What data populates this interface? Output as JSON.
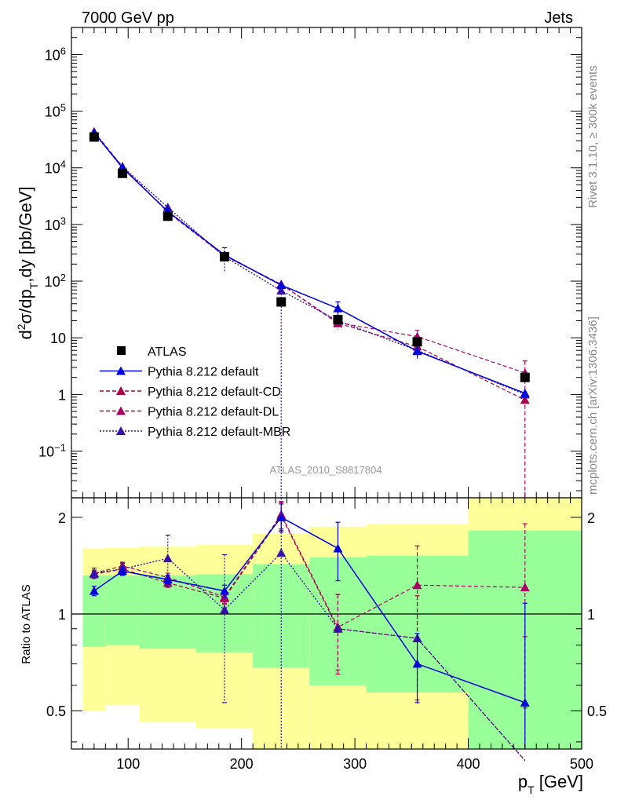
{
  "header": {
    "left_title": "7000 GeV pp",
    "right_title": "Jets"
  },
  "side_labels": {
    "rivet": "Rivet 3.1.10, ≥ 300k events",
    "mcplots": "mcplots.cern.ch [arXiv:1306.3436]"
  },
  "analysis_label": "ATLAS_2010_S8817804",
  "colors": {
    "atlas": "#000000",
    "default": "#0000dd",
    "cd": "#aa0044",
    "dl": "#aa0066",
    "mbr": "#3311aa",
    "band_yellow": "#ffff99",
    "band_green": "#99ff99"
  },
  "chart_data": [
    {
      "type": "scatter",
      "panel": "main",
      "title": "",
      "ylabel": "d²σ/dp_T,dy [pb/GeV]",
      "xlabel": "",
      "yscale": "log",
      "xlim": [
        50,
        500
      ],
      "ylim": [
        0.015,
        3000000
      ],
      "x_tick_labels": [
        "100",
        "200",
        "300",
        "400",
        "500"
      ],
      "y_tick_labels": [
        {
          "base": "10",
          "exp": "6",
          "value": 1000000
        },
        {
          "base": "10",
          "exp": "5",
          "value": 100000
        },
        {
          "base": "10",
          "exp": "4",
          "value": 10000
        },
        {
          "base": "10",
          "exp": "3",
          "value": 1000
        },
        {
          "base": "10",
          "exp": "2",
          "value": 100
        },
        {
          "base": "10",
          "exp": "",
          "value": 10
        },
        {
          "base": "1",
          "exp": "",
          "value": 1
        },
        {
          "base": "10",
          "exp": "−1",
          "value": 0.1
        }
      ],
      "x": [
        70,
        95,
        135,
        185,
        235,
        285,
        355,
        450
      ],
      "bin_edges": [
        60,
        80,
        110,
        160,
        210,
        260,
        310,
        400,
        500
      ],
      "legend": [
        {
          "label": "ATLAS",
          "key": "atlas",
          "style": "square"
        },
        {
          "label": "Pythia 8.212 default",
          "key": "default",
          "style": "solid"
        },
        {
          "label": "Pythia 8.212 default-CD",
          "key": "cd",
          "style": "dashed"
        },
        {
          "label": "Pythia 8.212 default-DL",
          "key": "dl",
          "style": "dashed"
        },
        {
          "label": "Pythia 8.212 default-MBR",
          "key": "mbr",
          "style": "dotted"
        }
      ],
      "series": [
        {
          "name": "ATLAS",
          "key": "atlas",
          "values": [
            35000,
            8000,
            1400,
            270,
            43,
            21,
            8.5,
            2.0
          ]
        },
        {
          "name": "Pythia 8.212 default",
          "key": "default",
          "values": [
            42000,
            10000,
            1700,
            290,
            85,
            33,
            5.8,
            1.05
          ],
          "err_hi": [
            0,
            0,
            0,
            0,
            0,
            10,
            1.5,
            0
          ],
          "err_lo": [
            0,
            0,
            0,
            0,
            0,
            8,
            1.5,
            0
          ]
        },
        {
          "name": "Pythia 8.212 default-CD",
          "key": "cd",
          "values": [
            43000,
            10500,
            1650,
            280,
            88,
            18,
            7.0,
            0.8
          ]
        },
        {
          "name": "Pythia 8.212 default-DL",
          "key": "dl",
          "values": [
            43000,
            10500,
            1650,
            280,
            88,
            18.5,
            10.5,
            2.4
          ],
          "err_hi": [
            0,
            0,
            0,
            0,
            0,
            0,
            3,
            1.5
          ],
          "err_lo": [
            0,
            0,
            0,
            0,
            0,
            4.5,
            3,
            2.4
          ]
        },
        {
          "name": "Pythia 8.212 default-MBR",
          "key": "mbr",
          "values": [
            40000,
            10500,
            2000,
            270,
            68,
            20,
            6.0,
            1.0
          ],
          "err_hi": [
            0,
            0,
            0,
            120,
            0,
            0,
            0,
            0
          ],
          "err_lo": [
            0,
            0,
            0,
            130,
            68,
            0,
            0,
            0
          ]
        }
      ]
    },
    {
      "type": "line",
      "panel": "ratio",
      "ylabel": "Ratio to ATLAS",
      "xlabel": "p_T [GeV]",
      "yscale": "log",
      "xlim": [
        50,
        500
      ],
      "ylim": [
        0.38,
        2.3
      ],
      "y_tick_labels": [
        "2",
        "1",
        "0.5"
      ],
      "y_tick_values": [
        2,
        1,
        0.5
      ],
      "x": [
        70,
        95,
        135,
        185,
        235,
        285,
        355,
        450
      ],
      "bands": {
        "edges": [
          60,
          80,
          110,
          160,
          210,
          260,
          310,
          400,
          500
        ],
        "green": [
          [
            0.79,
            1.32
          ],
          [
            0.8,
            1.32
          ],
          [
            0.78,
            1.32
          ],
          [
            0.76,
            1.33
          ],
          [
            0.68,
            1.43
          ],
          [
            0.6,
            1.5
          ],
          [
            0.57,
            1.52
          ],
          [
            0.38,
            1.82
          ]
        ],
        "yellow": [
          [
            0.5,
            1.6
          ],
          [
            0.52,
            1.61
          ],
          [
            0.46,
            1.62
          ],
          [
            0.44,
            1.64
          ],
          [
            0.3,
            1.78
          ],
          [
            0.3,
            1.87
          ],
          [
            0.3,
            1.9
          ],
          [
            0.3,
            2.5
          ]
        ]
      },
      "series": [
        {
          "name": "Pythia 8.212 default",
          "key": "default",
          "values": [
            1.18,
            1.36,
            1.28,
            1.18,
            2.0,
            1.6,
            0.7,
            0.53
          ],
          "err": [
            0.04,
            0.04,
            0.04,
            0.05,
            0.2,
            0.33,
            0.17,
            0.55
          ]
        },
        {
          "name": "Pythia 8.212 default-CD",
          "key": "cd",
          "values": [
            1.33,
            1.38,
            1.25,
            1.12,
            2.02,
            0.9,
            0.84,
            0.35
          ],
          "err": [
            0.03,
            0.04,
            0.04,
            0.05,
            0.2,
            0.25,
            0.3,
            0.5
          ]
        },
        {
          "name": "Pythia 8.212 default-DL",
          "key": "dl",
          "values": [
            1.34,
            1.41,
            1.3,
            1.13,
            2.04,
            0.91,
            1.23,
            1.21
          ],
          "err": [
            0.03,
            0.04,
            0.04,
            0.05,
            0.2,
            0.24,
            0.4,
            0.7
          ]
        },
        {
          "name": "Pythia 8.212 default-MBR",
          "key": "mbr",
          "values": [
            1.34,
            1.38,
            1.49,
            1.03,
            1.55,
            0.9,
            0.84,
            0.35
          ],
          "err": [
            0.05,
            0.06,
            0.27,
            0.5,
            1.4,
            0,
            0,
            0
          ]
        }
      ]
    }
  ]
}
